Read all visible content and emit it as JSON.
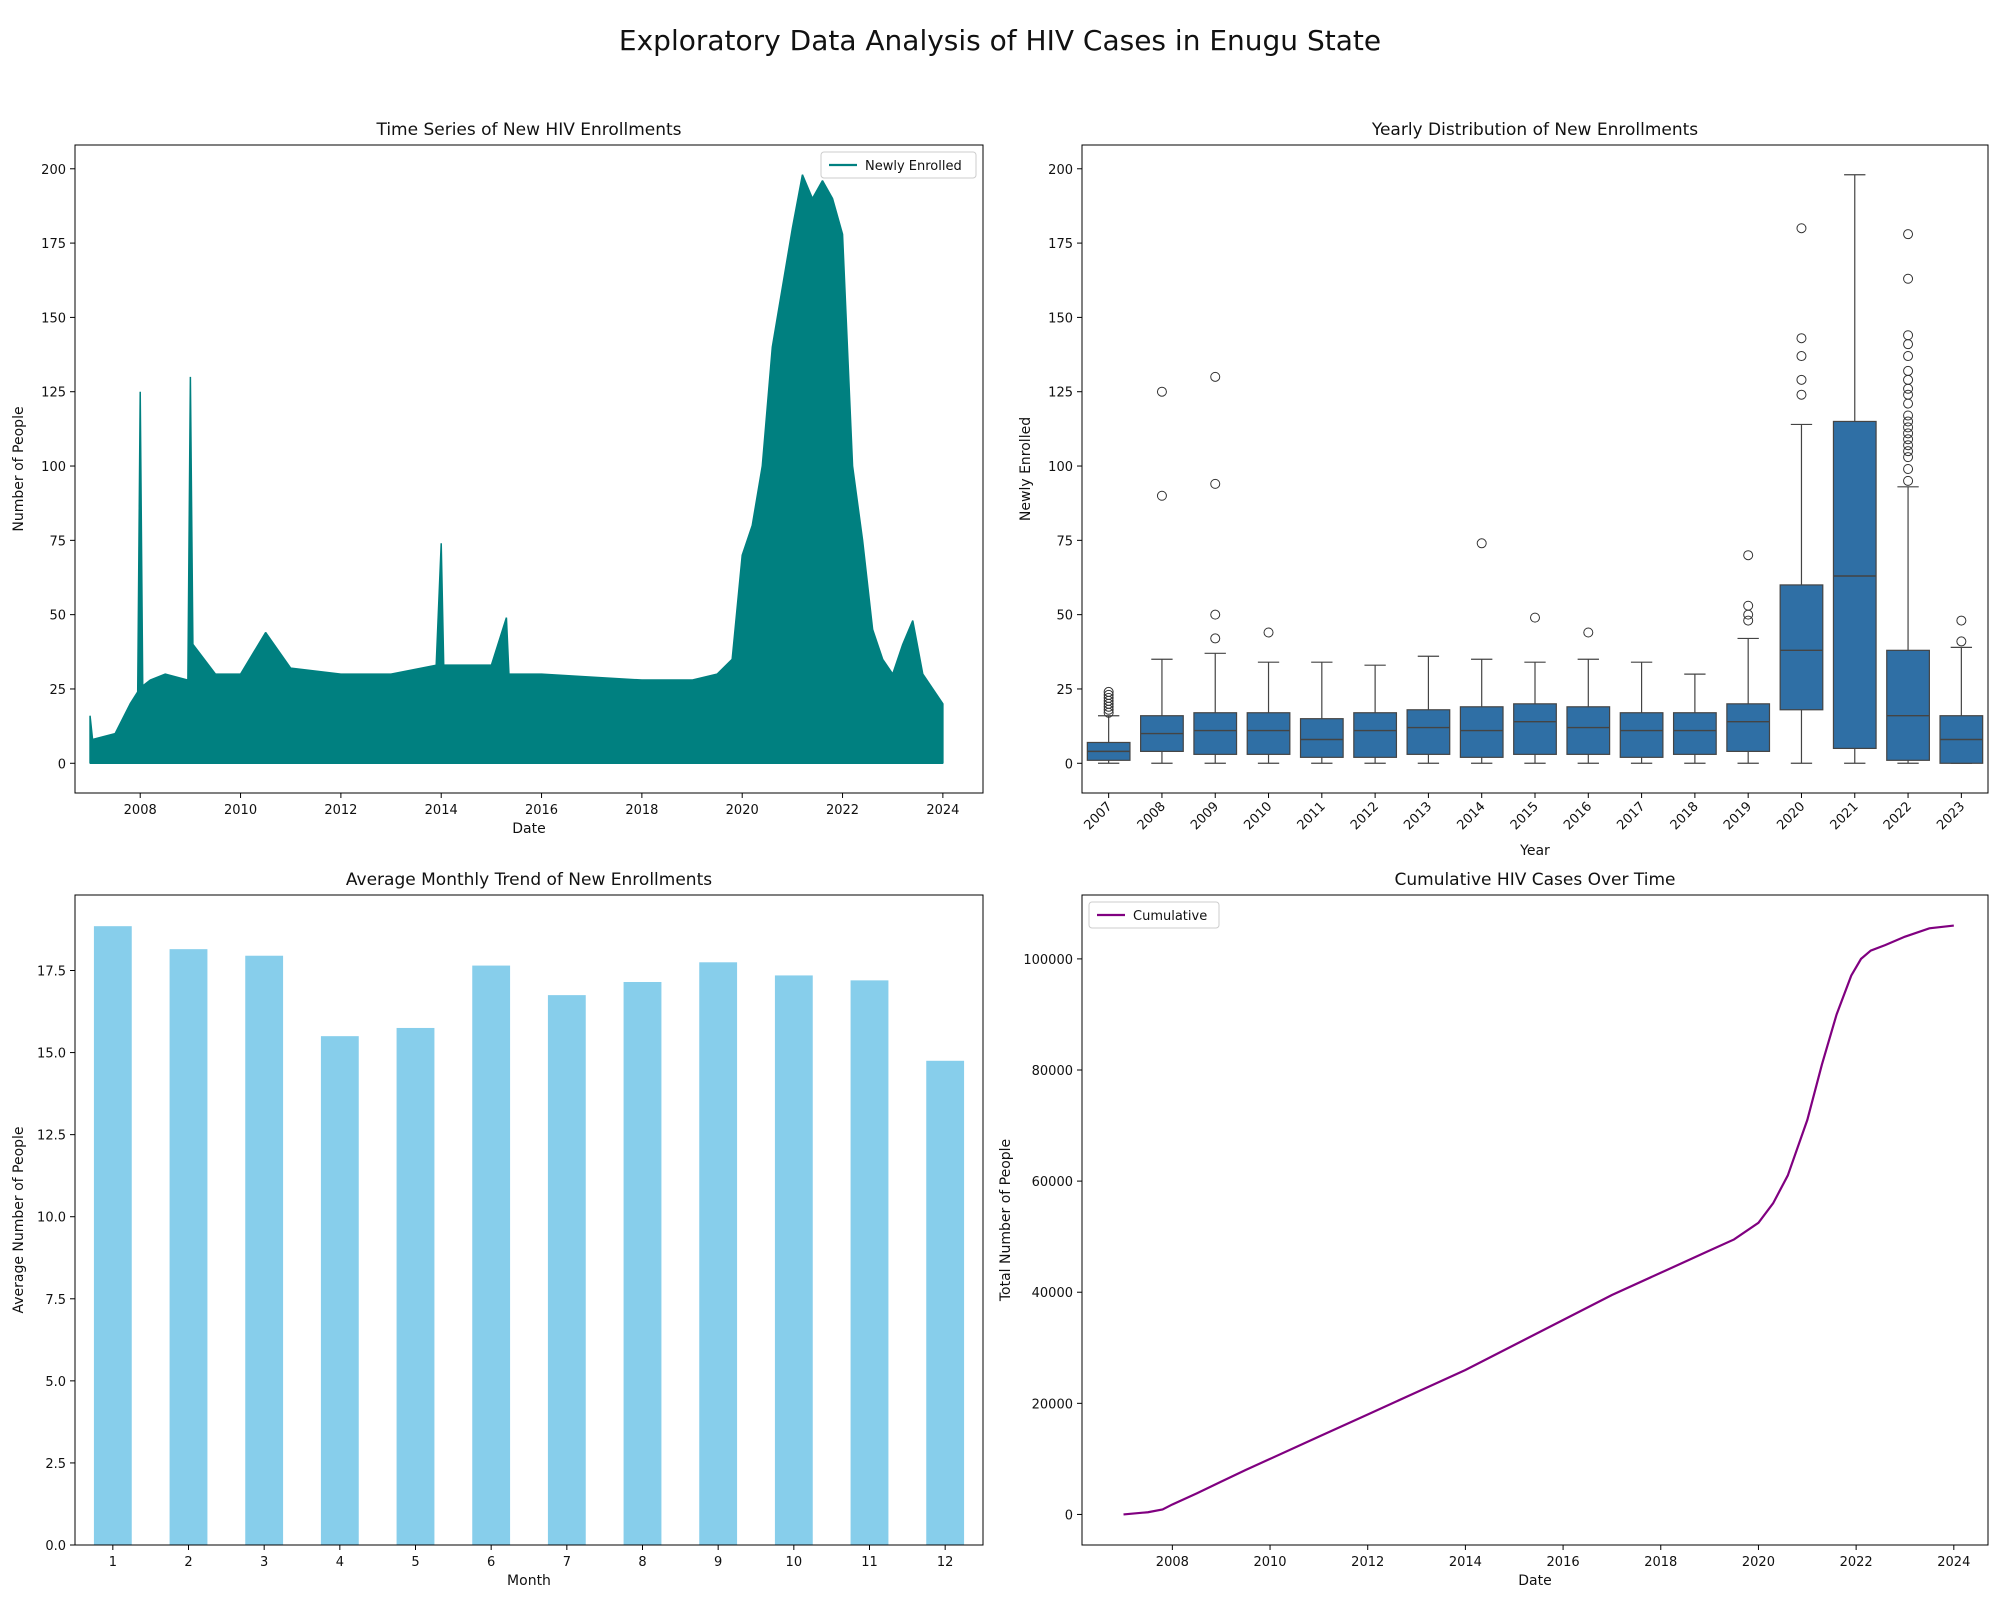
{
  "figure": {
    "title": "Exploratory Data Analysis of HIV Cases in Enugu State"
  },
  "colors": {
    "teal": "#008080",
    "box": "#2f6fa5",
    "bar": "#87ceeb",
    "purple": "#800080"
  },
  "chart_data": [
    {
      "id": "timeseries",
      "type": "line",
      "title": "Time Series of New HIV Enrollments",
      "xlabel": "Date",
      "ylabel": "Number of People",
      "xlim": [
        2006.7,
        2024.8
      ],
      "ylim": [
        -10,
        208
      ],
      "xticks": [
        2008,
        2010,
        2012,
        2014,
        2016,
        2018,
        2020,
        2022,
        2024
      ],
      "yticks": [
        0,
        25,
        50,
        75,
        100,
        125,
        150,
        175,
        200
      ],
      "legend": "top-right",
      "series": [
        {
          "name": "Newly Enrolled",
          "color": "#008080",
          "envelope": {
            "x": [
              2007.0,
              2007.05,
              2007.5,
              2007.8,
              2007.95,
              2008.0,
              2008.05,
              2008.2,
              2008.5,
              2008.95,
              2009.0,
              2009.05,
              2009.5,
              2010.0,
              2010.5,
              2011.0,
              2012.0,
              2013.0,
              2013.9,
              2014.0,
              2014.05,
              2015.0,
              2015.3,
              2015.35,
              2016.0,
              2017.0,
              2018.0,
              2019.0,
              2019.5,
              2019.8,
              2020.0,
              2020.2,
              2020.4,
              2020.6,
              2020.8,
              2021.0,
              2021.2,
              2021.4,
              2021.6,
              2021.8,
              2022.0,
              2022.2,
              2022.4,
              2022.6,
              2022.8,
              2023.0,
              2023.2,
              2023.4,
              2023.6,
              2023.8,
              2024.0
            ],
            "y": [
              16,
              8,
              10,
              20,
              24,
              125,
              26,
              28,
              30,
              28,
              130,
              40,
              30,
              30,
              44,
              32,
              30,
              30,
              33,
              74,
              33,
              33,
              49,
              30,
              30,
              29,
              28,
              28,
              30,
              35,
              70,
              80,
              100,
              140,
              160,
              180,
              198,
              190,
              196,
              190,
              178,
              100,
              75,
              45,
              35,
              30,
              40,
              48,
              30,
              25,
              20
            ]
          }
        }
      ]
    },
    {
      "id": "boxplot",
      "type": "box",
      "title": "Yearly Distribution of New Enrollments",
      "xlabel": "Year",
      "ylabel": "Newly Enrolled",
      "ylim": [
        -10,
        208
      ],
      "yticks": [
        0,
        25,
        50,
        75,
        100,
        125,
        150,
        175,
        200
      ],
      "categories": [
        "2007",
        "2008",
        "2009",
        "2010",
        "2011",
        "2012",
        "2013",
        "2014",
        "2015",
        "2016",
        "2017",
        "2018",
        "2019",
        "2020",
        "2021",
        "2022",
        "2023"
      ],
      "boxes": [
        {
          "wlo": 0,
          "q1": 1,
          "med": 4,
          "q3": 7,
          "whi": 16,
          "fliers": [
            17,
            18,
            19,
            20,
            21,
            22,
            23,
            24
          ]
        },
        {
          "wlo": 0,
          "q1": 4,
          "med": 10,
          "q3": 16,
          "whi": 35,
          "fliers": [
            90,
            125
          ]
        },
        {
          "wlo": 0,
          "q1": 3,
          "med": 11,
          "q3": 17,
          "whi": 37,
          "fliers": [
            42,
            50,
            94,
            130
          ]
        },
        {
          "wlo": 0,
          "q1": 3,
          "med": 11,
          "q3": 17,
          "whi": 34,
          "fliers": [
            44
          ]
        },
        {
          "wlo": 0,
          "q1": 2,
          "med": 8,
          "q3": 15,
          "whi": 34,
          "fliers": []
        },
        {
          "wlo": 0,
          "q1": 2,
          "med": 11,
          "q3": 17,
          "whi": 33,
          "fliers": []
        },
        {
          "wlo": 0,
          "q1": 3,
          "med": 12,
          "q3": 18,
          "whi": 36,
          "fliers": []
        },
        {
          "wlo": 0,
          "q1": 2,
          "med": 11,
          "q3": 19,
          "whi": 35,
          "fliers": [
            74
          ]
        },
        {
          "wlo": 0,
          "q1": 3,
          "med": 14,
          "q3": 20,
          "whi": 34,
          "fliers": [
            49
          ]
        },
        {
          "wlo": 0,
          "q1": 3,
          "med": 12,
          "q3": 19,
          "whi": 35,
          "fliers": [
            44
          ]
        },
        {
          "wlo": 0,
          "q1": 2,
          "med": 11,
          "q3": 17,
          "whi": 34,
          "fliers": []
        },
        {
          "wlo": 0,
          "q1": 3,
          "med": 11,
          "q3": 17,
          "whi": 30,
          "fliers": []
        },
        {
          "wlo": 0,
          "q1": 4,
          "med": 14,
          "q3": 20,
          "whi": 42,
          "fliers": [
            48,
            50,
            53,
            70
          ]
        },
        {
          "wlo": 0,
          "q1": 18,
          "med": 38,
          "q3": 60,
          "whi": 114,
          "fliers": [
            124,
            129,
            137,
            143,
            180
          ]
        },
        {
          "wlo": 0,
          "q1": 5,
          "med": 63,
          "q3": 115,
          "whi": 198,
          "fliers": []
        },
        {
          "wlo": 0,
          "q1": 1,
          "med": 16,
          "q3": 38,
          "whi": 93,
          "fliers": [
            95,
            99,
            103,
            105,
            107,
            109,
            111,
            113,
            115,
            117,
            121,
            124,
            126,
            129,
            132,
            137,
            141,
            144,
            163,
            178
          ]
        },
        {
          "wlo": 0,
          "q1": 0,
          "med": 8,
          "q3": 16,
          "whi": 39,
          "fliers": [
            41,
            48
          ]
        }
      ]
    },
    {
      "id": "monthly",
      "type": "bar",
      "title": "Average Monthly Trend of New Enrollments",
      "xlabel": "Month",
      "ylabel": "Average Number of People",
      "ylim": [
        0,
        19.8
      ],
      "yticks": [
        0.0,
        2.5,
        5.0,
        7.5,
        10.0,
        12.5,
        15.0,
        17.5
      ],
      "categories": [
        "1",
        "2",
        "3",
        "4",
        "5",
        "6",
        "7",
        "8",
        "9",
        "10",
        "11",
        "12"
      ],
      "values": [
        18.85,
        18.15,
        17.95,
        15.5,
        15.75,
        17.65,
        16.75,
        17.15,
        17.75,
        17.35,
        17.2,
        14.75
      ]
    },
    {
      "id": "cumulative",
      "type": "line",
      "title": "Cumulative HIV Cases Over Time",
      "xlabel": "Date",
      "ylabel": "Total Number of People",
      "xlim": [
        2006.15,
        2024.7
      ],
      "ylim": [
        -5500,
        111500
      ],
      "xticks": [
        2008,
        2010,
        2012,
        2014,
        2016,
        2018,
        2020,
        2022,
        2024
      ],
      "yticks": [
        0,
        20000,
        40000,
        60000,
        80000,
        100000
      ],
      "legend": "top-left",
      "series": [
        {
          "name": "Cumulative",
          "color": "#800080",
          "x": [
            2007.0,
            2007.5,
            2007.8,
            2008.0,
            2008.5,
            2009.0,
            2009.5,
            2010.0,
            2011.0,
            2012.0,
            2013.0,
            2014.0,
            2015.0,
            2016.0,
            2017.0,
            2018.0,
            2019.0,
            2019.5,
            2020.0,
            2020.3,
            2020.6,
            2021.0,
            2021.3,
            2021.6,
            2021.9,
            2022.1,
            2022.3,
            2022.6,
            2023.0,
            2023.5,
            2024.0
          ],
          "y": [
            0,
            400,
            900,
            1800,
            3800,
            5900,
            8000,
            10000,
            14000,
            18000,
            22000,
            26000,
            30500,
            35000,
            39500,
            43500,
            47500,
            49500,
            52500,
            56000,
            61000,
            71000,
            81000,
            90000,
            97000,
            100000,
            101500,
            102500,
            104000,
            105500,
            106000
          ]
        }
      ]
    }
  ]
}
